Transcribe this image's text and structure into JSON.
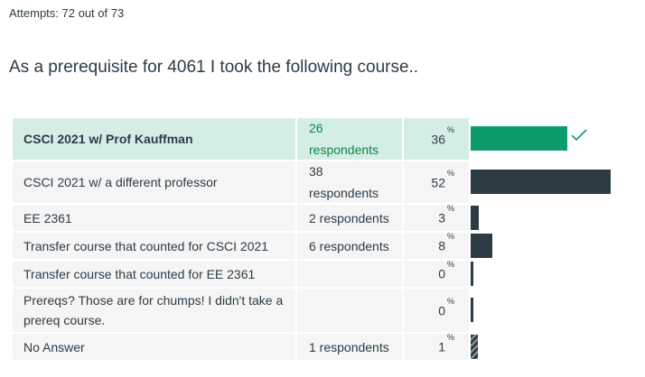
{
  "attempts_text": "Attempts: 72 out of 73",
  "question_text": "As a prerequisite for 4061 I took the following course..",
  "answers": [
    {
      "label": "CSCI 2021 w/ Prof Kauffman",
      "respondents": "26 respondents",
      "percent": "36",
      "value": 0.36,
      "correct": true
    },
    {
      "label": "CSCI 2021 w/ a different professor",
      "respondents": "38 respondents",
      "percent": "52",
      "value": 0.52,
      "correct": false
    },
    {
      "label": "EE 2361",
      "respondents": "2 respondents",
      "percent": "3",
      "value": 0.03,
      "correct": false
    },
    {
      "label": "Transfer course that counted for CSCI 2021",
      "respondents": "6 respondents",
      "percent": "8",
      "value": 0.08,
      "correct": false
    },
    {
      "label": "Transfer course that counted for EE 2361",
      "respondents": "",
      "percent": "0",
      "value": 0,
      "correct": false
    },
    {
      "label": "Prereqs? Those are for chumps! I didn't take a prereq course.",
      "respondents": "",
      "percent": "0",
      "value": 0,
      "correct": false
    },
    {
      "label": "No Answer",
      "respondents": "1 respondents",
      "percent": "1",
      "value": 0.01,
      "correct": false,
      "hatched": true
    }
  ],
  "percent_sign": "%",
  "colors": {
    "correct_bar": "#0c9c6b",
    "bar": "#2d3b45",
    "correct_row_bg": "#d5eee5",
    "row_bg": "#f5f5f5",
    "check": "#0c9c6b"
  },
  "icons": {
    "correct_marker": "check-icon"
  }
}
